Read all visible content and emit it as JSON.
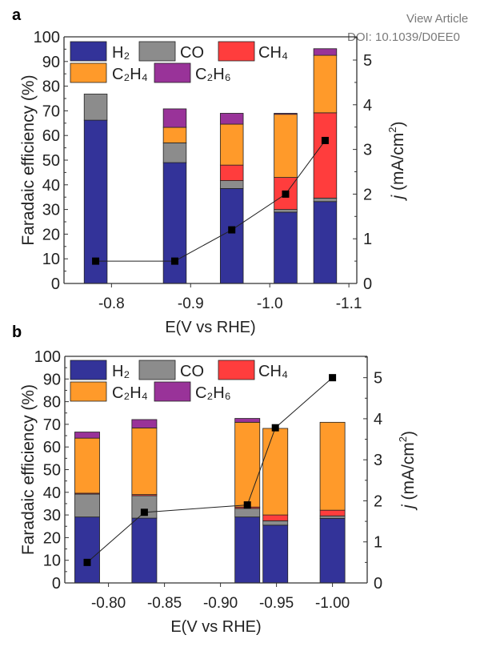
{
  "header": {
    "view_article": "View Article",
    "doi": "DOI: 10.1039/D0EE0"
  },
  "colors": {
    "H2": "#333399",
    "CO": "#8c8c8c",
    "CH4": "#ff3d3d",
    "C2H4": "#ff9a2a",
    "C2H6": "#993399"
  },
  "chart_data": [
    {
      "panel_label": "a",
      "type": "bar",
      "stacked": true,
      "xlabel": "E(V vs RHE)",
      "ylabel": "Faradaic efficiency (%)",
      "y2label_italic": "j",
      "y2label": " (mA/cm",
      "y2label_sup": "2",
      "y2label_end": ")",
      "xlim": [
        -0.74,
        -1.11
      ],
      "ylim": [
        0,
        100
      ],
      "y2lim": [
        0,
        5.52
      ],
      "xticks": [
        "-0.8",
        "-0.9",
        "-1.0",
        "-1.1"
      ],
      "xtick_values": [
        -0.8,
        -0.9,
        -1.0,
        -1.1
      ],
      "yticks": [
        "0",
        "10",
        "20",
        "30",
        "40",
        "50",
        "60",
        "70",
        "80",
        "90",
        "100"
      ],
      "y2ticks": [
        "0",
        "1",
        "2",
        "3",
        "4",
        "5"
      ],
      "bar_width_v": 0.029,
      "x": [
        -0.78,
        -0.88,
        -0.952,
        -1.02,
        -1.07
      ],
      "legend": [
        "H₂",
        "CO",
        "CH₄",
        "C₂H₄",
        "C₂H₆"
      ],
      "series": [
        {
          "name": "H2",
          "values": [
            66.2,
            49.0,
            38.5,
            28.9,
            33.2
          ]
        },
        {
          "name": "CO",
          "values": [
            10.6,
            8.0,
            3.2,
            1.1,
            1.4
          ]
        },
        {
          "name": "CH4",
          "values": [
            0,
            0,
            6.3,
            13.0,
            34.6
          ]
        },
        {
          "name": "C2H4",
          "values": [
            0,
            6.3,
            16.6,
            25.6,
            23.3
          ]
        },
        {
          "name": "C2H6",
          "values": [
            0,
            7.5,
            4.4,
            0.4,
            2.7
          ]
        }
      ],
      "current_density": {
        "name": "j (mA/cm2)",
        "values": [
          0.5,
          0.5,
          1.2,
          2.0,
          3.2
        ]
      }
    },
    {
      "panel_label": "b",
      "type": "bar",
      "stacked": true,
      "xlabel": "E(V vs RHE)",
      "ylabel": "Faradaic efficiency (%)",
      "y2label_italic": "j",
      "y2label": " (mA/cm",
      "y2label_sup": "2",
      "y2label_end": ")",
      "xlim": [
        -0.761,
        -1.031
      ],
      "ylim": [
        0,
        100
      ],
      "y2lim": [
        0,
        5.52
      ],
      "xticks": [
        "-0.80",
        "-0.85",
        "-0.90",
        "-0.95",
        "-1.00"
      ],
      "xtick_values": [
        -0.8,
        -0.85,
        -0.9,
        -0.95,
        -1.0
      ],
      "yticks": [
        "0",
        "10",
        "20",
        "30",
        "40",
        "50",
        "60",
        "70",
        "80",
        "90",
        "100"
      ],
      "y2ticks": [
        "0",
        "1",
        "2",
        "3",
        "4",
        "5"
      ],
      "bar_width_v": 0.0222,
      "x": [
        -0.781,
        -0.832,
        -0.924,
        -0.949,
        -1.0
      ],
      "legend": [
        "H₂",
        "CO",
        "CH₄",
        "C₂H₄",
        "C₂H₆"
      ],
      "series": [
        {
          "name": "H2",
          "values": [
            29.1,
            28.6,
            29.1,
            25.5,
            28.5
          ]
        },
        {
          "name": "CO",
          "values": [
            10.1,
            9.9,
            3.8,
            1.9,
            1.1
          ]
        },
        {
          "name": "CH4",
          "values": [
            0.4,
            0.5,
            0.6,
            2.6,
            2.5
          ]
        },
        {
          "name": "C2H4",
          "values": [
            24.3,
            29.4,
            37.4,
            38.2,
            38.8
          ]
        },
        {
          "name": "C2H6",
          "values": [
            2.7,
            3.7,
            1.7,
            0,
            0
          ]
        }
      ],
      "current_density": {
        "name": "j (mA/cm2)",
        "values": [
          0.5,
          1.72,
          1.9,
          3.78,
          5.0
        ]
      }
    }
  ]
}
